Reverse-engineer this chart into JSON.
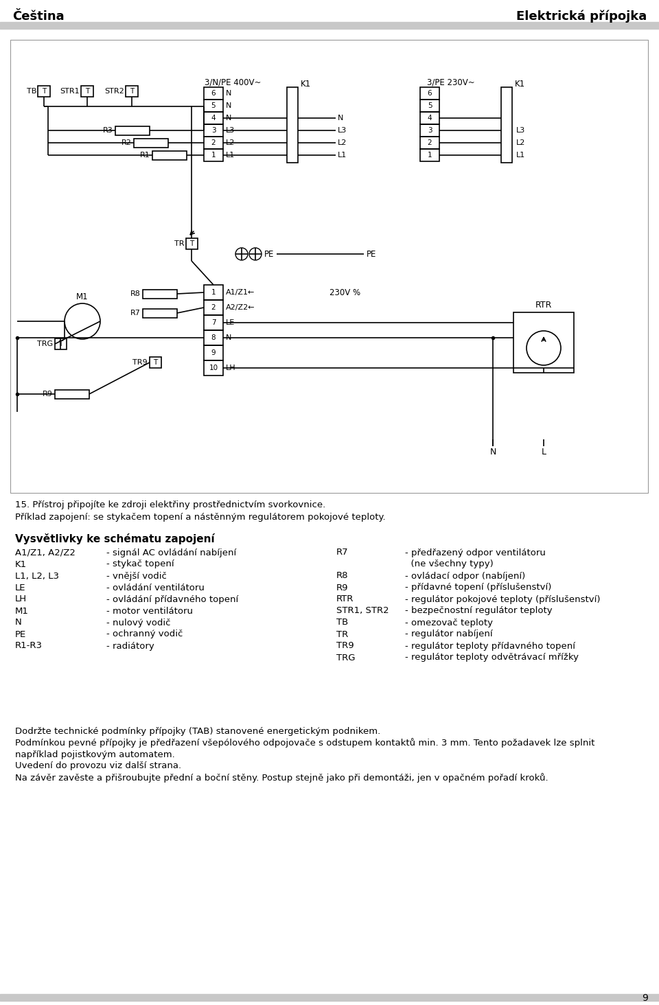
{
  "header_left": "Čeština",
  "header_right": "Elektrická přípojka",
  "header_bar_color": "#c8c8c8",
  "diagram_border_color": "#888888",
  "line_color": "#000000",
  "bg_color": "#ffffff",
  "caption1": "15. Přístroj připojíte ke zdroji elektřiny prostřednictvím svorkovnice.",
  "caption2": "Příklad zapojení: se stykačem topení a nástěnným regulátorem pokojové teploty.",
  "legend_title": "Vysvětlivky ke schématu zapojení",
  "legend_left": [
    [
      "A1/Z1, A2/Z2",
      "- signál AC ovládání nabíjení"
    ],
    [
      "K1",
      "- stykač topení"
    ],
    [
      "L1, L2, L3",
      "- vnější vodič"
    ],
    [
      "LE",
      "- ovládání ventilátoru"
    ],
    [
      "LH",
      "- ovládání přídavného topení"
    ],
    [
      "M1",
      "- motor ventilátoru"
    ],
    [
      "N",
      "- nulový vodič"
    ],
    [
      "PE",
      "- ochranný vodič"
    ],
    [
      "R1-R3",
      "- radiátory"
    ]
  ],
  "legend_right": [
    [
      "R7",
      "- předřazený odpor ventilátoru"
    ],
    [
      "",
      "  (ne všechny typy)"
    ],
    [
      "R8",
      "- ovládací odpor (nabíjení)"
    ],
    [
      "R9",
      "- přídavné topení (příslušenství)"
    ],
    [
      "RTR",
      "- regulátor pokojové teploty (příslušenství)"
    ],
    [
      "STR1, STR2",
      "- bezpečnostní regulátor teploty"
    ],
    [
      "TB",
      "- omezovač teploty"
    ],
    [
      "TR",
      "- regulátor nabíjení"
    ],
    [
      "TR9",
      "- regulátor teploty přídavného topení"
    ],
    [
      "TRG",
      "- regulátor teploty odvětrávací mřížky"
    ]
  ],
  "footer_lines": [
    "Dodržte technické podmínky přípojky (TAB) stanovené energetickým podnikem.",
    "Podmínkou pevné přípojky je předřazení všepólového odpojovače s odstupem kontaktů min. 3 mm. Tento požadavek lze splnit",
    "například pojistkovým automatem.",
    "Uvedení do provozu viz další strana.",
    "Na závěr zavěste a přišroubujte přední a boční stěny. Postup stejně jako při demontáži, jen v opačném pořadí kroků."
  ],
  "page_number": "9"
}
